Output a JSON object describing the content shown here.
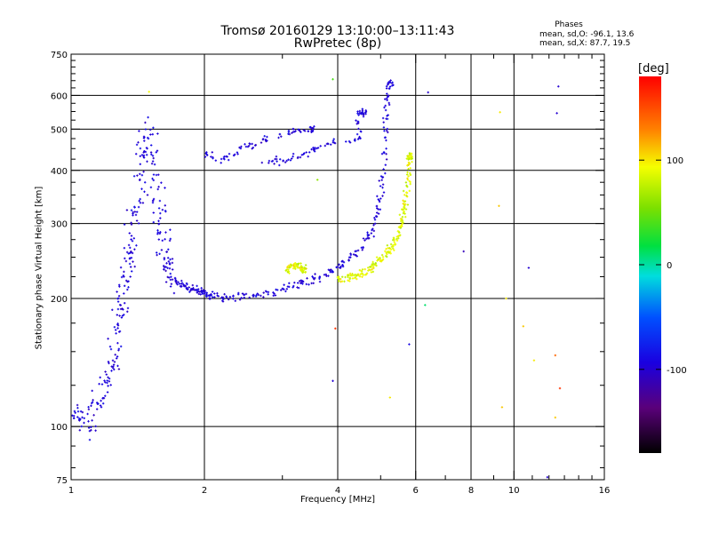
{
  "header": {
    "title_line1": "Tromsø 20160129 13:10:00–13:11:43",
    "title_line2": "RwPretec (8p)",
    "stats_heading": "Phases",
    "stats_line1": "mean, sd,O: -96.1, 13.6",
    "stats_line2": "mean, sd,X: 87.7, 19.5"
  },
  "colorbar": {
    "unit": "[deg]",
    "ticks": [
      {
        "value": 100,
        "label": "100"
      },
      {
        "value": 0,
        "label": "0"
      },
      {
        "value": -100,
        "label": "-100"
      }
    ],
    "range": [
      -180,
      180
    ]
  },
  "chart_data": {
    "type": "scatter",
    "title": "Tromsø 20160129 13:10:00–13:11:43",
    "subtitle": "RwPretec (8p)",
    "xlabel": "Frequency [MHz]",
    "ylabel": "Stationary phase Virtual Height [km]",
    "xscale": "log",
    "yscale": "log",
    "xlim": [
      1,
      16
    ],
    "ylim": [
      75,
      750
    ],
    "xticks": [
      {
        "value": 1,
        "label": "1"
      },
      {
        "value": 2,
        "label": "2"
      },
      {
        "value": 4,
        "label": "4"
      },
      {
        "value": 6,
        "label": "6"
      },
      {
        "value": 8,
        "label": "8"
      },
      {
        "value": 10,
        "label": "10"
      },
      {
        "value": 16,
        "label": "16"
      }
    ],
    "xminor": [
      3,
      5,
      7,
      9,
      11,
      12,
      13,
      14,
      15
    ],
    "xgrid": [
      2,
      4,
      6,
      8,
      10
    ],
    "yticks": [
      {
        "value": 75,
        "label": "75"
      },
      {
        "value": 100,
        "label": "100"
      },
      {
        "value": 200,
        "label": "200"
      },
      {
        "value": 300,
        "label": "300"
      },
      {
        "value": 400,
        "label": "400"
      },
      {
        "value": 500,
        "label": "500"
      },
      {
        "value": 600,
        "label": "600"
      },
      {
        "value": 750,
        "label": "750"
      }
    ],
    "yminor": [
      80,
      90,
      125,
      150,
      175,
      225,
      250,
      275,
      325,
      350,
      375,
      425,
      450,
      475,
      525,
      550,
      575,
      625,
      650,
      675,
      700,
      725
    ],
    "ygrid": [
      100,
      200,
      300,
      400,
      500,
      600
    ],
    "grid": true,
    "legend": "colorbar right, phase [deg]",
    "series": [
      {
        "name": "O",
        "phase_mean": -96.1,
        "phase_sd": 13.6,
        "points": [
          [
            1.0,
            105
          ],
          [
            1.03,
            110
          ],
          [
            1.06,
            103
          ],
          [
            1.1,
            101
          ],
          [
            1.13,
            108
          ],
          [
            1.17,
            118
          ],
          [
            1.2,
            125
          ],
          [
            1.23,
            133
          ],
          [
            1.25,
            145
          ],
          [
            1.27,
            160
          ],
          [
            1.29,
            175
          ],
          [
            1.3,
            190
          ],
          [
            1.32,
            205
          ],
          [
            1.33,
            220
          ],
          [
            1.35,
            240
          ],
          [
            1.36,
            260
          ],
          [
            1.38,
            285
          ],
          [
            1.4,
            310
          ],
          [
            1.42,
            350
          ],
          [
            1.44,
            400
          ],
          [
            1.46,
            450
          ],
          [
            1.48,
            500
          ],
          [
            1.5,
            480
          ],
          [
            1.52,
            420
          ],
          [
            1.54,
            370
          ],
          [
            1.56,
            330
          ],
          [
            1.58,
            300
          ],
          [
            1.6,
            275
          ],
          [
            1.62,
            255
          ],
          [
            1.64,
            240
          ],
          [
            1.66,
            230
          ],
          [
            1.7,
            222
          ],
          [
            1.75,
            218
          ],
          [
            1.8,
            214
          ],
          [
            1.85,
            212
          ],
          [
            1.9,
            210
          ],
          [
            1.95,
            208
          ],
          [
            2.0,
            206
          ],
          [
            2.05,
            204
          ],
          [
            2.1,
            202
          ],
          [
            2.2,
            201
          ],
          [
            2.35,
            201
          ],
          [
            2.5,
            203
          ],
          [
            2.7,
            205
          ],
          [
            2.9,
            208
          ],
          [
            3.1,
            212
          ],
          [
            3.3,
            216
          ],
          [
            3.5,
            220
          ],
          [
            3.7,
            226
          ],
          [
            3.9,
            232
          ],
          [
            4.1,
            240
          ],
          [
            4.3,
            250
          ],
          [
            4.5,
            262
          ],
          [
            4.7,
            280
          ],
          [
            4.85,
            300
          ],
          [
            4.95,
            330
          ],
          [
            5.02,
            370
          ],
          [
            5.07,
            420
          ],
          [
            5.12,
            480
          ],
          [
            5.16,
            540
          ],
          [
            5.2,
            600
          ],
          [
            5.25,
            640
          ],
          [
            2.0,
            440
          ],
          [
            2.15,
            425
          ],
          [
            2.3,
            432
          ],
          [
            2.5,
            455
          ],
          [
            2.7,
            470
          ],
          [
            2.95,
            485
          ],
          [
            3.2,
            495
          ],
          [
            3.5,
            498
          ],
          [
            2.7,
            418
          ],
          [
            2.95,
            422
          ],
          [
            3.2,
            428
          ],
          [
            3.45,
            440
          ],
          [
            3.7,
            458
          ],
          [
            4.2,
            470
          ],
          [
            4.5,
            478
          ],
          [
            4.4,
            540
          ],
          [
            4.6,
            548
          ]
        ]
      },
      {
        "name": "X",
        "phase_mean": 87.7,
        "phase_sd": 19.5,
        "points": [
          [
            3.05,
            232
          ],
          [
            3.15,
            238
          ],
          [
            3.25,
            240
          ],
          [
            3.35,
            234
          ],
          [
            4.0,
            222
          ],
          [
            4.2,
            224
          ],
          [
            4.4,
            226
          ],
          [
            4.6,
            230
          ],
          [
            4.8,
            238
          ],
          [
            5.0,
            248
          ],
          [
            5.2,
            258
          ],
          [
            5.35,
            270
          ],
          [
            5.5,
            285
          ],
          [
            5.6,
            305
          ],
          [
            5.68,
            330
          ],
          [
            5.74,
            360
          ],
          [
            5.8,
            400
          ],
          [
            5.84,
            430
          ]
        ]
      }
    ],
    "outliers": [
      {
        "x": 1.5,
        "y": 612,
        "phase": 95
      },
      {
        "x": 3.9,
        "y": 655,
        "phase": 40
      },
      {
        "x": 9.3,
        "y": 548,
        "phase": 100
      },
      {
        "x": 9.25,
        "y": 330,
        "phase": 110
      },
      {
        "x": 7.7,
        "y": 258,
        "phase": -110
      },
      {
        "x": 10.8,
        "y": 236,
        "phase": -100
      },
      {
        "x": 12.6,
        "y": 630,
        "phase": -100
      },
      {
        "x": 12.5,
        "y": 545,
        "phase": -100
      },
      {
        "x": 9.6,
        "y": 200,
        "phase": 100
      },
      {
        "x": 12.4,
        "y": 147,
        "phase": 140
      },
      {
        "x": 12.7,
        "y": 123,
        "phase": 160
      },
      {
        "x": 9.4,
        "y": 111,
        "phase": 110
      },
      {
        "x": 12.4,
        "y": 105,
        "phase": 110
      },
      {
        "x": 11.1,
        "y": 143,
        "phase": 100
      },
      {
        "x": 10.5,
        "y": 172,
        "phase": 110
      },
      {
        "x": 3.9,
        "y": 128,
        "phase": -100
      },
      {
        "x": 3.95,
        "y": 170,
        "phase": 160
      },
      {
        "x": 5.25,
        "y": 117,
        "phase": 100
      },
      {
        "x": 6.3,
        "y": 193,
        "phase": 10
      },
      {
        "x": 5.8,
        "y": 156,
        "phase": -90
      },
      {
        "x": 11.9,
        "y": 76,
        "phase": -100
      },
      {
        "x": 3.6,
        "y": 380,
        "phase": 60
      },
      {
        "x": 6.4,
        "y": 610,
        "phase": -100
      }
    ]
  }
}
